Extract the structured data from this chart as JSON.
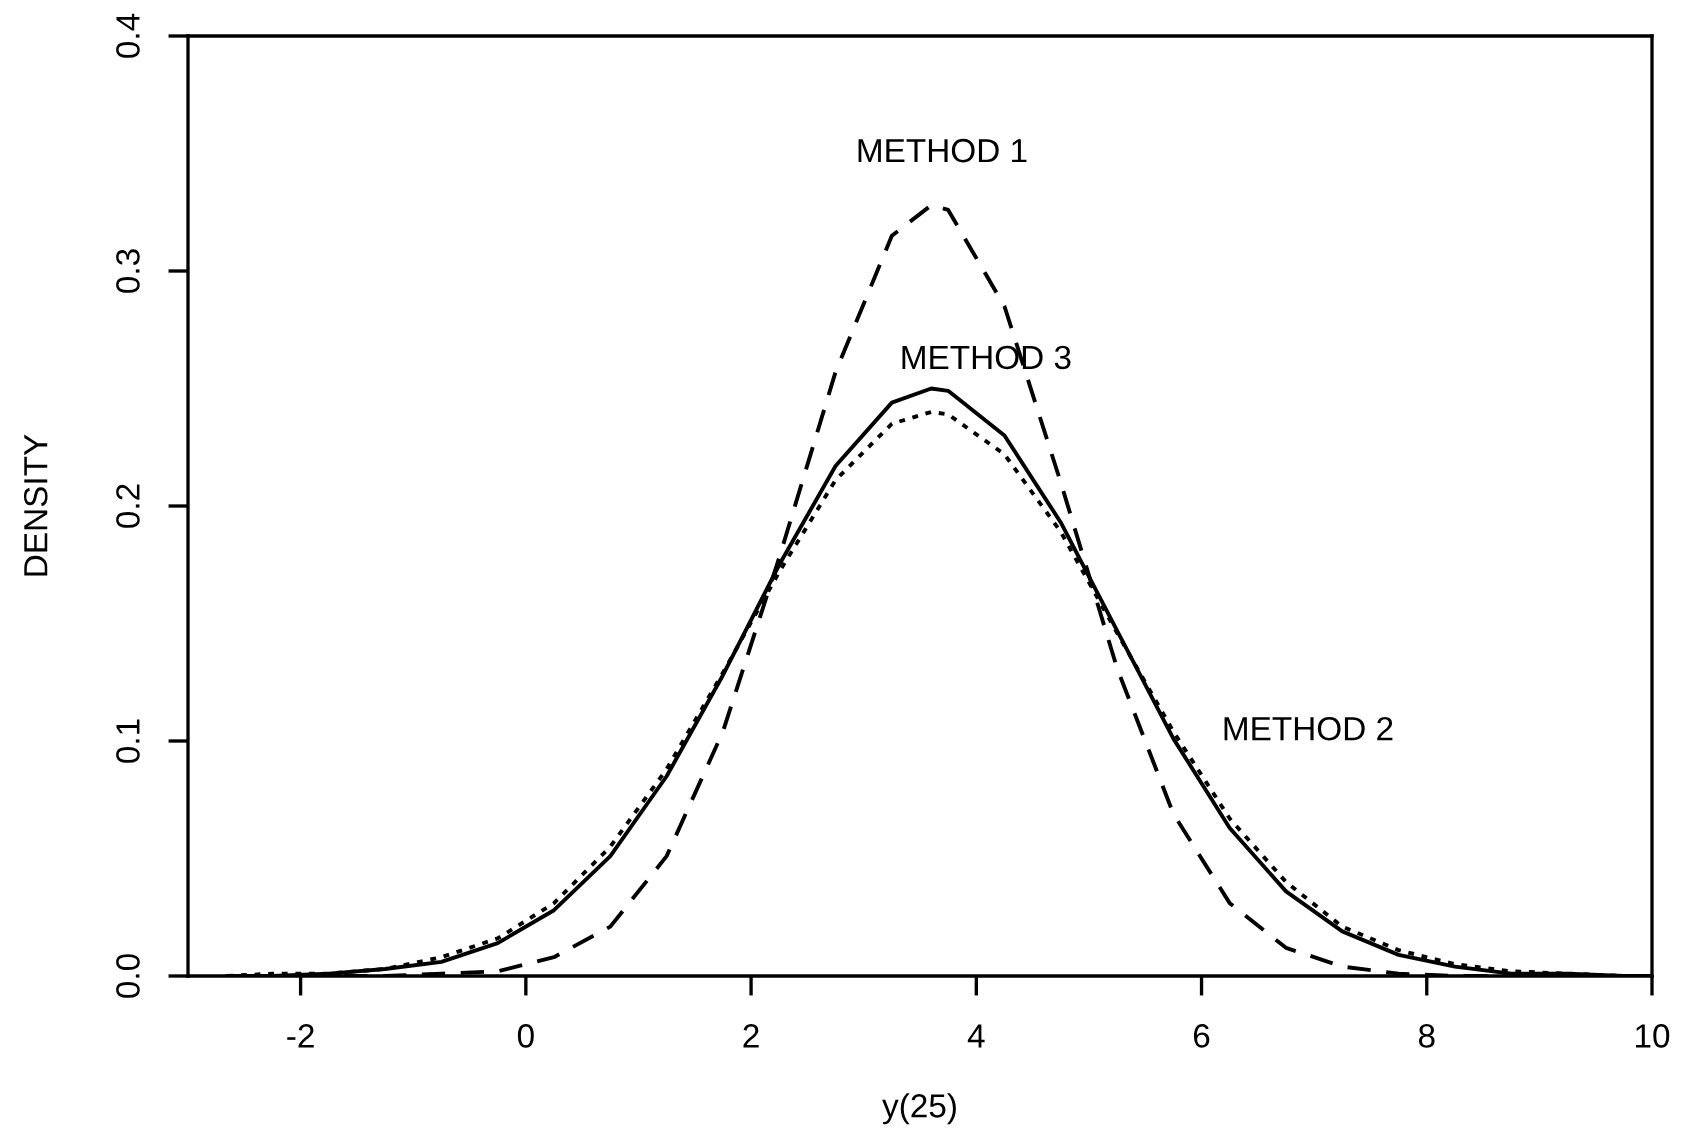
{
  "chart_data": {
    "type": "line",
    "xlabel": "y(25)",
    "ylabel": "DENSITY",
    "x": [
      -2.65,
      -2.25,
      -1.75,
      -1.25,
      -0.75,
      -0.25,
      0.25,
      0.75,
      1.25,
      1.75,
      2.25,
      2.75,
      3.25,
      3.6,
      3.75,
      4.25,
      4.75,
      5.25,
      5.75,
      6.25,
      6.75,
      7.25,
      7.75,
      8.25,
      8.75,
      9.25,
      9.75,
      10.0
    ],
    "series": [
      {
        "name": "METHOD 1",
        "color": "#000000",
        "line_style": "dashed",
        "values": [
          0,
          0,
          0,
          0,
          0.001,
          0.002,
          0.008,
          0.021,
          0.051,
          0.104,
          0.178,
          0.257,
          0.315,
          0.328,
          0.326,
          0.285,
          0.21,
          0.131,
          0.069,
          0.031,
          0.012,
          0.004,
          0.001,
          0,
          0,
          0,
          0,
          0
        ]
      },
      {
        "name": "METHOD 3",
        "color": "#000000",
        "line_style": "solid",
        "values": [
          0,
          0,
          0.001,
          0.003,
          0.006,
          0.014,
          0.028,
          0.051,
          0.085,
          0.128,
          0.175,
          0.217,
          0.244,
          0.25,
          0.249,
          0.23,
          0.193,
          0.147,
          0.101,
          0.063,
          0.036,
          0.019,
          0.009,
          0.004,
          0.001,
          0.001,
          0,
          0
        ]
      },
      {
        "name": "METHOD 2",
        "color": "#000000",
        "line_style": "dotted",
        "values": [
          0,
          0.001,
          0.001,
          0.003,
          0.008,
          0.016,
          0.031,
          0.055,
          0.088,
          0.129,
          0.172,
          0.211,
          0.235,
          0.24,
          0.239,
          0.222,
          0.189,
          0.146,
          0.104,
          0.067,
          0.04,
          0.021,
          0.011,
          0.005,
          0.002,
          0.001,
          0,
          0
        ]
      }
    ],
    "xlim": [
      -3,
      10
    ],
    "ylim": [
      0,
      0.4
    ],
    "xticks": [
      -2,
      0,
      2,
      4,
      6,
      8,
      10
    ],
    "yticks": [
      {
        "value": 0,
        "label": "0.0"
      },
      0.1,
      0.2,
      0.3,
      0.4
    ],
    "grid": false,
    "legend": false
  }
}
